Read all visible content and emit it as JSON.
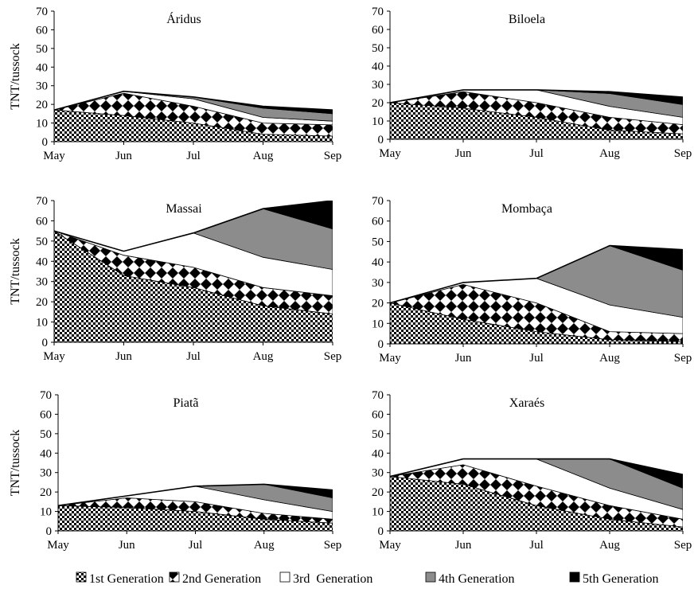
{
  "legend": [
    {
      "label": "1st Generation",
      "fill": "checker"
    },
    {
      "label": "2nd Generation",
      "fill": "diamond"
    },
    {
      "label": "3rd  Generation",
      "fill": "white"
    },
    {
      "label": "4th Generation",
      "fill": "#8c8c8c"
    },
    {
      "label": "5th Generation",
      "fill": "#000000"
    }
  ],
  "chart_data": [
    {
      "type": "area",
      "stacked": true,
      "title": "Áridus",
      "ylabel": "TNT/tussock",
      "categories": [
        "May",
        "Jun",
        "Jul",
        "Aug",
        "Sep"
      ],
      "yticks": [
        0,
        10,
        20,
        30,
        40,
        50,
        60,
        70
      ],
      "ylim": [
        0,
        70
      ],
      "series": [
        {
          "name": "1st Generation",
          "values": [
            17,
            14,
            10,
            4,
            3
          ]
        },
        {
          "name": "2nd Generation",
          "values": [
            0,
            12,
            9,
            6,
            6
          ]
        },
        {
          "name": "3rd  Generation",
          "values": [
            0,
            1,
            4,
            3,
            2
          ]
        },
        {
          "name": "4th Generation",
          "values": [
            0,
            0,
            1,
            5,
            4
          ]
        },
        {
          "name": "5th Generation",
          "values": [
            0,
            0,
            0,
            1,
            2
          ]
        }
      ]
    },
    {
      "type": "area",
      "stacked": true,
      "title": "Biloela",
      "ylabel": "",
      "categories": [
        "May",
        "Jun",
        "Jul",
        "Aug",
        "Sep"
      ],
      "yticks": [
        0,
        10,
        20,
        30,
        40,
        50,
        60,
        70
      ],
      "ylim": [
        0,
        70
      ],
      "series": [
        {
          "name": "1st Generation",
          "values": [
            20,
            17,
            12,
            5,
            3
          ]
        },
        {
          "name": "2nd Generation",
          "values": [
            0,
            9,
            8,
            7,
            5
          ]
        },
        {
          "name": "3rd  Generation",
          "values": [
            0,
            1,
            7,
            6,
            4
          ]
        },
        {
          "name": "4th Generation",
          "values": [
            0,
            0,
            0,
            7,
            7
          ]
        },
        {
          "name": "5th Generation",
          "values": [
            0,
            0,
            0,
            1,
            4
          ]
        }
      ]
    },
    {
      "type": "area",
      "stacked": true,
      "title": "Massai",
      "ylabel": "TNT/tussock",
      "categories": [
        "May",
        "Jun",
        "Jul",
        "Aug",
        "Sep"
      ],
      "yticks": [
        0,
        10,
        20,
        30,
        40,
        50,
        60,
        70
      ],
      "ylim": [
        0,
        70
      ],
      "series": [
        {
          "name": "1st Generation",
          "values": [
            55,
            33,
            27,
            18,
            14
          ]
        },
        {
          "name": "2nd Generation",
          "values": [
            0,
            10,
            10,
            9,
            9
          ]
        },
        {
          "name": "3rd  Generation",
          "values": [
            0,
            2,
            17,
            15,
            13
          ]
        },
        {
          "name": "4th Generation",
          "values": [
            0,
            0,
            0,
            24,
            20
          ]
        },
        {
          "name": "5th Generation",
          "values": [
            0,
            0,
            0,
            0,
            14
          ]
        }
      ]
    },
    {
      "type": "area",
      "stacked": true,
      "title": "Mombaça",
      "ylabel": "",
      "categories": [
        "May",
        "Jun",
        "Jul",
        "Aug",
        "Sep"
      ],
      "yticks": [
        0,
        10,
        20,
        30,
        40,
        50,
        60,
        70
      ],
      "ylim": [
        0,
        70
      ],
      "series": [
        {
          "name": "1st Generation",
          "values": [
            20,
            12,
            6,
            2,
            1
          ]
        },
        {
          "name": "2nd Generation",
          "values": [
            0,
            17,
            14,
            4,
            4
          ]
        },
        {
          "name": "3rd  Generation",
          "values": [
            0,
            1,
            12,
            13,
            8
          ]
        },
        {
          "name": "4th Generation",
          "values": [
            0,
            0,
            0,
            29,
            23
          ]
        },
        {
          "name": "5th Generation",
          "values": [
            0,
            0,
            0,
            0,
            10
          ]
        }
      ]
    },
    {
      "type": "area",
      "stacked": true,
      "title": "Piatã",
      "ylabel": "TNT/tussock",
      "categories": [
        "May",
        "Jun",
        "Jul",
        "Aug",
        "Sep"
      ],
      "yticks": [
        0,
        10,
        20,
        30,
        40,
        50,
        60,
        70
      ],
      "ylim": [
        0,
        70
      ],
      "series": [
        {
          "name": "1st Generation",
          "values": [
            13,
            12,
            10,
            6,
            4
          ]
        },
        {
          "name": "2nd Generation",
          "values": [
            0,
            5,
            5,
            3,
            2
          ]
        },
        {
          "name": "3rd  Generation",
          "values": [
            0,
            1,
            8,
            7,
            4
          ]
        },
        {
          "name": "4th Generation",
          "values": [
            0,
            0,
            0,
            8,
            7
          ]
        },
        {
          "name": "5th Generation",
          "values": [
            0,
            0,
            0,
            0,
            4
          ]
        }
      ]
    },
    {
      "type": "area",
      "stacked": true,
      "title": "Xaraés",
      "ylabel": "",
      "categories": [
        "May",
        "Jun",
        "Jul",
        "Aug",
        "Sep"
      ],
      "yticks": [
        0,
        10,
        20,
        30,
        40,
        50,
        60,
        70
      ],
      "ylim": [
        0,
        70
      ],
      "series": [
        {
          "name": "1st Generation",
          "values": [
            28,
            24,
            13,
            6,
            2
          ]
        },
        {
          "name": "2nd Generation",
          "values": [
            0,
            10,
            10,
            7,
            4
          ]
        },
        {
          "name": "3rd  Generation",
          "values": [
            0,
            3,
            14,
            9,
            5
          ]
        },
        {
          "name": "4th Generation",
          "values": [
            0,
            0,
            0,
            15,
            11
          ]
        },
        {
          "name": "5th Generation",
          "values": [
            0,
            0,
            0,
            0,
            7
          ]
        }
      ]
    }
  ]
}
